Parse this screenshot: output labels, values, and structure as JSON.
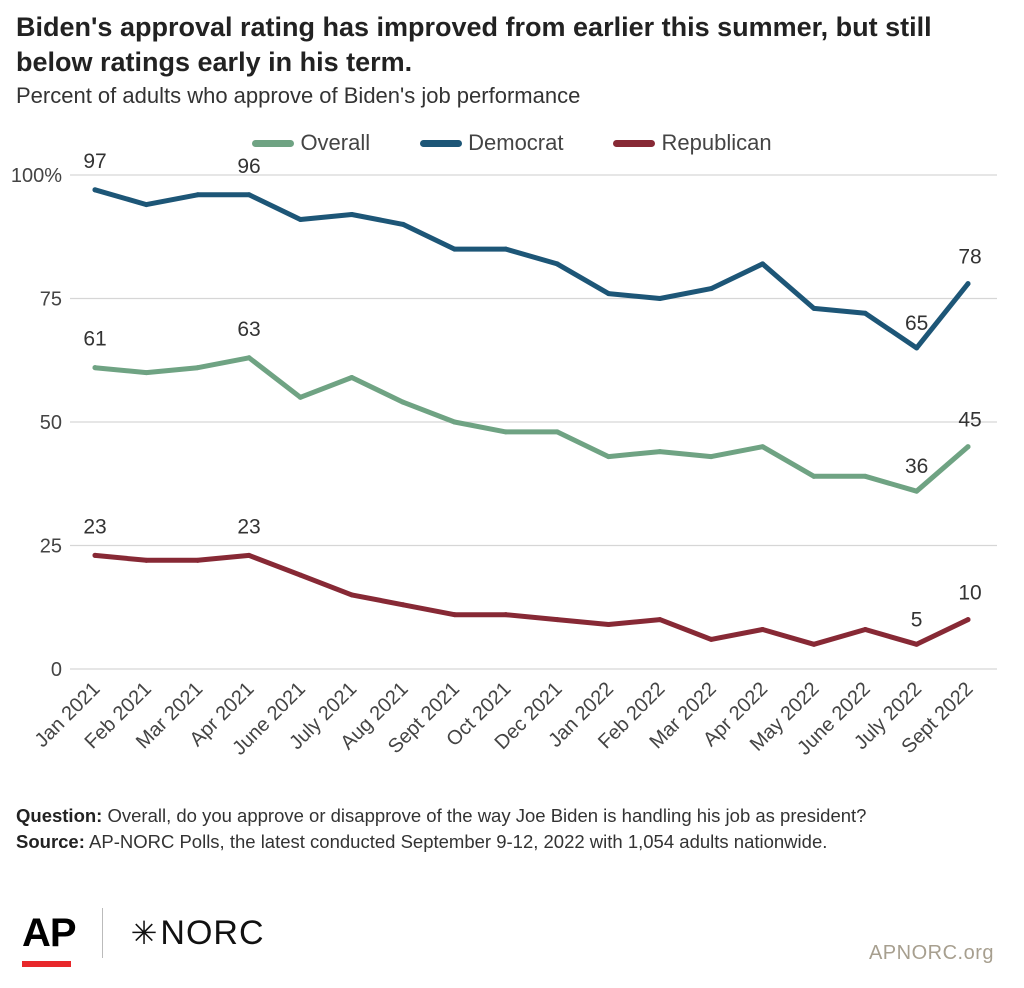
{
  "title": "Biden's approval rating has improved from earlier this summer, but still below ratings early in his term.",
  "subtitle": "Percent of adults who approve of Biden's job performance",
  "chart_data": {
    "type": "line",
    "categories": [
      "Jan 2021",
      "Feb 2021",
      "Mar 2021",
      "Apr 2021",
      "June 2021",
      "July 2021",
      "Aug 2021",
      "Sept 2021",
      "Oct 2021",
      "Dec 2021",
      "Jan 2022",
      "Feb 2022",
      "Mar 2022",
      "Apr 2022",
      "May 2022",
      "June 2022",
      "July 2022",
      "Sept 2022"
    ],
    "series": [
      {
        "name": "Overall",
        "color": "#6fa383",
        "values": [
          61,
          60,
          61,
          63,
          55,
          59,
          54,
          50,
          48,
          48,
          43,
          44,
          43,
          45,
          39,
          39,
          36,
          45
        ],
        "labeled_points": [
          0,
          3,
          16,
          17
        ]
      },
      {
        "name": "Democrat",
        "color": "#1d5677",
        "values": [
          97,
          94,
          96,
          96,
          91,
          92,
          90,
          85,
          85,
          82,
          76,
          75,
          77,
          82,
          73,
          72,
          65,
          78
        ],
        "labeled_points": [
          0,
          3,
          16,
          17
        ]
      },
      {
        "name": "Republican",
        "color": "#872935",
        "values": [
          23,
          22,
          22,
          23,
          19,
          15,
          13,
          11,
          11,
          10,
          9,
          10,
          6,
          8,
          5,
          8,
          5,
          10
        ],
        "labeled_points": [
          0,
          3,
          16,
          17
        ]
      }
    ],
    "yticks": [
      0,
      25,
      50,
      75,
      100
    ],
    "ytick_labels": [
      "0",
      "25",
      "50",
      "75",
      "100%"
    ],
    "ylim": [
      0,
      100
    ],
    "grid": true,
    "legend": "top-center",
    "xlabel": "",
    "ylabel": ""
  },
  "footer": {
    "question_label": "Question:",
    "question_text": " Overall, do you approve or disapprove of the way Joe Biden is handling his job as president?",
    "source_label": "Source:",
    "source_text": " AP-NORC Polls, the latest conducted September 9-12, 2022 with 1,054 adults nationwide."
  },
  "logos": {
    "ap": "AP",
    "norc_star": "✳",
    "norc": "NORC"
  },
  "site": "APNORC.org"
}
